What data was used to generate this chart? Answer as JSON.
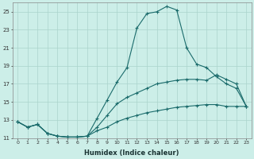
{
  "xlabel": "Humidex (Indice chaleur)",
  "background_color": "#cceee8",
  "grid_color": "#aad4cc",
  "line_color": "#1a6b6b",
  "xlim": [
    -0.5,
    23.5
  ],
  "ylim": [
    11,
    26
  ],
  "yticks": [
    11,
    13,
    15,
    17,
    19,
    21,
    23,
    25
  ],
  "xticks": [
    0,
    1,
    2,
    3,
    4,
    5,
    6,
    7,
    8,
    9,
    10,
    11,
    12,
    13,
    14,
    15,
    16,
    17,
    18,
    19,
    20,
    21,
    22,
    23
  ],
  "series": [
    {
      "x": [
        0,
        1,
        2,
        3,
        4,
        5,
        6,
        7,
        8,
        9,
        10,
        11,
        12,
        13,
        14,
        15,
        16,
        17,
        18,
        19,
        20,
        21,
        22,
        23
      ],
      "y": [
        12.8,
        12.2,
        12.5,
        11.5,
        11.2,
        11.1,
        11.1,
        11.2,
        13.2,
        15.2,
        17.2,
        18.8,
        23.2,
        24.8,
        25.0,
        25.6,
        25.2,
        21.0,
        19.2,
        18.8,
        17.8,
        17.0,
        16.5,
        14.5
      ]
    },
    {
      "x": [
        0,
        1,
        2,
        3,
        4,
        5,
        6,
        7,
        8,
        9,
        10,
        11,
        12,
        13,
        14,
        15,
        16,
        17,
        18,
        19,
        20,
        21,
        22,
        23
      ],
      "y": [
        12.8,
        12.2,
        12.5,
        11.5,
        11.2,
        11.1,
        11.1,
        11.2,
        12.2,
        13.5,
        14.8,
        15.5,
        16.0,
        16.5,
        17.0,
        17.2,
        17.4,
        17.5,
        17.5,
        17.4,
        18.0,
        17.5,
        17.0,
        14.5
      ]
    },
    {
      "x": [
        0,
        1,
        2,
        3,
        4,
        5,
        6,
        7,
        8,
        9,
        10,
        11,
        12,
        13,
        14,
        15,
        16,
        17,
        18,
        19,
        20,
        21,
        22,
        23
      ],
      "y": [
        12.8,
        12.2,
        12.5,
        11.5,
        11.2,
        11.1,
        11.1,
        11.2,
        11.8,
        12.2,
        12.8,
        13.2,
        13.5,
        13.8,
        14.0,
        14.2,
        14.4,
        14.5,
        14.6,
        14.7,
        14.7,
        14.5,
        14.5,
        14.5
      ]
    }
  ]
}
